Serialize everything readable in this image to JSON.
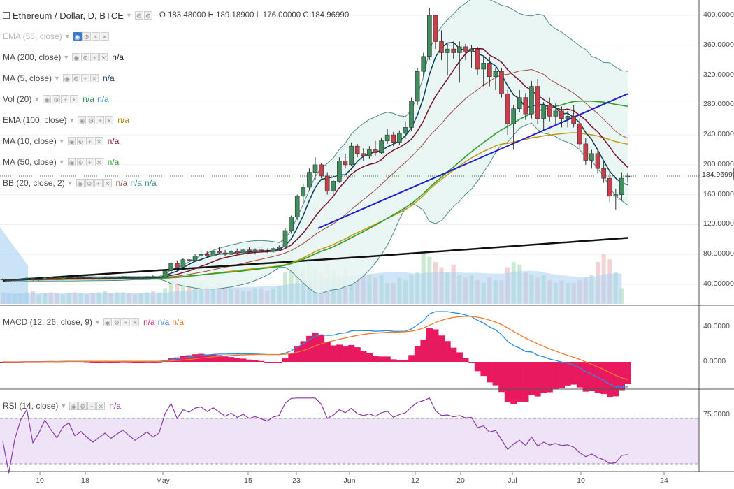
{
  "header": {
    "title": "Ethereum / Dollar, D, BTCE",
    "ohlc": "O 183.48000 H 189.18900 L 176.00000 C 184.96990"
  },
  "indicators": [
    {
      "label": "EMA (55, close)",
      "values": [],
      "dim": true,
      "colors": []
    },
    {
      "label": "MA (200, close)",
      "values": [
        "n/a"
      ],
      "colors": [
        "#222222"
      ]
    },
    {
      "label": "MA (5, close)",
      "values": [
        "n/a"
      ],
      "colors": [
        "#0b3d59"
      ]
    },
    {
      "label": "Vol (20)",
      "values": [
        "n/a",
        "n/a"
      ],
      "colors": [
        "#2e8b57",
        "#3a8fd8"
      ]
    },
    {
      "label": "EMA (100, close)",
      "values": [
        "n/a"
      ],
      "colors": [
        "#b8860b"
      ]
    },
    {
      "label": "MA (10, close)",
      "values": [
        "n/a"
      ],
      "colors": [
        "#7a1030"
      ]
    },
    {
      "label": "MA (50, close)",
      "values": [
        "n/a"
      ],
      "colors": [
        "#2aa02a"
      ]
    },
    {
      "label": "BB (20, close, 2)",
      "values": [
        "n/a",
        "n/a",
        "n/a"
      ],
      "colors": [
        "#8b3a3a",
        "#3a8a8a",
        "#3a8a8a"
      ]
    }
  ],
  "macd_legend": {
    "label": "MACD (12, 26, close, 9)",
    "values": [
      "n/a",
      "n/a",
      "n/a"
    ],
    "colors": [
      "#e0216b",
      "#2a7fd8",
      "#ef7a26"
    ]
  },
  "rsi_legend": {
    "label": "RSI (14, close)",
    "values": [
      "n/a"
    ],
    "colors": [
      "#8a3aa8"
    ]
  },
  "price_tag": "184.96990",
  "colors": {
    "up": "#3f8f5e",
    "down": "#c8404a",
    "bb": "#4d8a8a",
    "bbfill": "#e6f4f1",
    "ma5": "#0b3d59",
    "ma10": "#7a1030",
    "bbmid": "#a0483f",
    "ma50": "#2aa02a",
    "ema100": "#c9960e",
    "ma200": "#111111",
    "trend": "#2020d0",
    "macd": "#2a8ee0",
    "signal": "#f07a2a",
    "hist": "#e8195f",
    "rsi": "#8a3aa8",
    "rsiband": "#efe3f8"
  },
  "chart_data": {
    "type": "line",
    "x_ticks": [
      "10",
      "18",
      "May",
      "15",
      "23",
      "Jun",
      "12",
      "20",
      "Jul",
      "10",
      "24"
    ],
    "price_axis": {
      "ticks": [
        "40.00000",
        "80.00000",
        "120.00000",
        "160.00000",
        "200.00000",
        "240.00000",
        "280.00000",
        "320.00000",
        "360.00000",
        "400.00000"
      ],
      "ylim": [
        0,
        430
      ]
    },
    "candles": [
      [
        47,
        48,
        45,
        46
      ],
      [
        46,
        47,
        44,
        45
      ],
      [
        45,
        47,
        43,
        46
      ],
      [
        46,
        48,
        45,
        47
      ],
      [
        47,
        49,
        46,
        48
      ],
      [
        48,
        48,
        45,
        46
      ],
      [
        46,
        48,
        45,
        47
      ],
      [
        47,
        50,
        46,
        49
      ],
      [
        49,
        50,
        47,
        48
      ],
      [
        48,
        49,
        46,
        47
      ],
      [
        47,
        50,
        46,
        49
      ],
      [
        49,
        51,
        48,
        50
      ],
      [
        50,
        51,
        47,
        48
      ],
      [
        48,
        50,
        47,
        49
      ],
      [
        49,
        50,
        47,
        48
      ],
      [
        48,
        49,
        46,
        47
      ],
      [
        47,
        49,
        46,
        48
      ],
      [
        48,
        50,
        47,
        49
      ],
      [
        49,
        50,
        47,
        48
      ],
      [
        48,
        50,
        47,
        49
      ],
      [
        49,
        51,
        48,
        50
      ],
      [
        50,
        51,
        48,
        49
      ],
      [
        49,
        50,
        47,
        48
      ],
      [
        48,
        50,
        46,
        49
      ],
      [
        49,
        51,
        48,
        50
      ],
      [
        50,
        52,
        48,
        49
      ],
      [
        49,
        51,
        48,
        50
      ],
      [
        50,
        60,
        49,
        58
      ],
      [
        58,
        70,
        56,
        68
      ],
      [
        68,
        72,
        60,
        63
      ],
      [
        63,
        75,
        62,
        73
      ],
      [
        73,
        78,
        70,
        72
      ],
      [
        72,
        80,
        70,
        78
      ],
      [
        78,
        86,
        76,
        80
      ],
      [
        80,
        84,
        76,
        78
      ],
      [
        78,
        86,
        77,
        84
      ],
      [
        84,
        90,
        80,
        82
      ],
      [
        82,
        86,
        78,
        80
      ],
      [
        80,
        86,
        78,
        84
      ],
      [
        84,
        88,
        80,
        82
      ],
      [
        82,
        88,
        80,
        86
      ],
      [
        86,
        90,
        82,
        84
      ],
      [
        84,
        88,
        80,
        86
      ],
      [
        86,
        90,
        83,
        85
      ],
      [
        85,
        88,
        82,
        84
      ],
      [
        84,
        90,
        82,
        88
      ],
      [
        88,
        92,
        86,
        90
      ],
      [
        90,
        115,
        88,
        112
      ],
      [
        112,
        132,
        108,
        130
      ],
      [
        130,
        160,
        126,
        158
      ],
      [
        158,
        175,
        150,
        170
      ],
      [
        170,
        195,
        166,
        190
      ],
      [
        190,
        210,
        180,
        200
      ],
      [
        200,
        202,
        182,
        185
      ],
      [
        185,
        190,
        160,
        165
      ],
      [
        165,
        180,
        160,
        178
      ],
      [
        178,
        210,
        176,
        205
      ],
      [
        205,
        215,
        195,
        200
      ],
      [
        200,
        230,
        198,
        225
      ],
      [
        225,
        228,
        210,
        215
      ],
      [
        215,
        222,
        205,
        212
      ],
      [
        212,
        225,
        208,
        220
      ],
      [
        220,
        232,
        212,
        216
      ],
      [
        216,
        236,
        214,
        232
      ],
      [
        232,
        248,
        228,
        240
      ],
      [
        240,
        244,
        225,
        230
      ],
      [
        230,
        246,
        226,
        242
      ],
      [
        242,
        258,
        235,
        250
      ],
      [
        250,
        290,
        245,
        285
      ],
      [
        285,
        330,
        280,
        325
      ],
      [
        325,
        350,
        318,
        345
      ],
      [
        345,
        410,
        340,
        400
      ],
      [
        400,
        400,
        355,
        365
      ],
      [
        365,
        380,
        340,
        350
      ],
      [
        350,
        362,
        320,
        355
      ],
      [
        355,
        365,
        342,
        350
      ],
      [
        350,
        365,
        310,
        358
      ],
      [
        358,
        362,
        340,
        352
      ],
      [
        352,
        360,
        330,
        355
      ],
      [
        355,
        358,
        320,
        328
      ],
      [
        328,
        345,
        305,
        336
      ],
      [
        336,
        345,
        305,
        318
      ],
      [
        318,
        330,
        300,
        325
      ],
      [
        325,
        330,
        290,
        295
      ],
      [
        295,
        300,
        240,
        255
      ],
      [
        255,
        280,
        220,
        275
      ],
      [
        275,
        300,
        270,
        290
      ],
      [
        290,
        296,
        260,
        268
      ],
      [
        268,
        312,
        262,
        305
      ],
      [
        305,
        315,
        255,
        262
      ],
      [
        262,
        284,
        245,
        280
      ],
      [
        280,
        290,
        258,
        265
      ],
      [
        265,
        282,
        255,
        272
      ],
      [
        272,
        278,
        250,
        262
      ],
      [
        262,
        272,
        250,
        265
      ],
      [
        265,
        280,
        250,
        255
      ],
      [
        255,
        262,
        222,
        228
      ],
      [
        228,
        236,
        200,
        206
      ],
      [
        206,
        220,
        195,
        215
      ],
      [
        215,
        222,
        188,
        195
      ],
      [
        195,
        205,
        176,
        182
      ],
      [
        182,
        190,
        150,
        158
      ],
      [
        158,
        168,
        140,
        160
      ],
      [
        160,
        190,
        152,
        182
      ],
      [
        183.48,
        189.19,
        176,
        184.97
      ]
    ],
    "volume": [
      22,
      20,
      18,
      20,
      22,
      24,
      18,
      20,
      22,
      20,
      18,
      20,
      22,
      20,
      18,
      20,
      22,
      24,
      20,
      22,
      22,
      20,
      18,
      20,
      22,
      24,
      22,
      30,
      55,
      45,
      40,
      35,
      45,
      40,
      35,
      30,
      40,
      35,
      30,
      30,
      25,
      25,
      30,
      30,
      25,
      30,
      35,
      60,
      95,
      80,
      70,
      85,
      70,
      60,
      75,
      65,
      55,
      70,
      50,
      45,
      60,
      55,
      50,
      55,
      40,
      40,
      50,
      45,
      55,
      60,
      100,
      90,
      80,
      70,
      60,
      75,
      55,
      50,
      55,
      45,
      40,
      50,
      45,
      45,
      70,
      80,
      75,
      60,
      55,
      50,
      55,
      45,
      40,
      45,
      40,
      40,
      45,
      50,
      55,
      80,
      95,
      85,
      60,
      30
    ],
    "macd_axis": {
      "ticks": [
        "40.0000",
        "0.0000"
      ]
    },
    "rsi_axis": {
      "ticks": [
        "75.0000"
      ],
      "band": [
        30,
        70
      ]
    }
  }
}
